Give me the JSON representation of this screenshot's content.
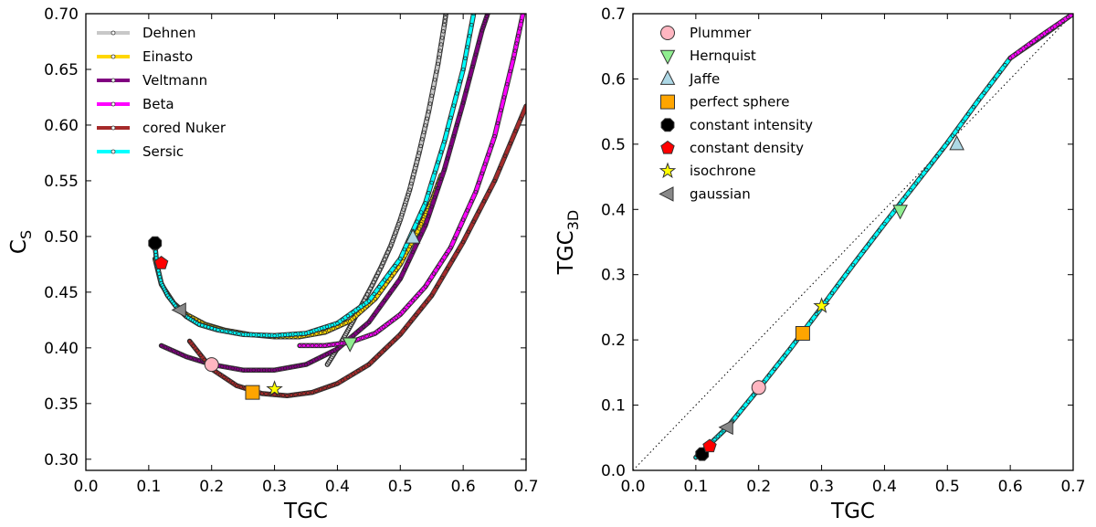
{
  "chart_data": [
    {
      "type": "line",
      "xlabel": "TGC",
      "ylabel": "C",
      "ylabel_sub": "S",
      "xlim": [
        0.0,
        0.7
      ],
      "ylim": [
        0.29,
        0.7
      ],
      "xticks": [
        "0.0",
        "0.1",
        "0.2",
        "0.3",
        "0.4",
        "0.5",
        "0.6",
        "0.7"
      ],
      "yticks": [
        "0.30",
        "0.35",
        "0.40",
        "0.45",
        "0.50",
        "0.55",
        "0.60",
        "0.65",
        "0.70"
      ],
      "legend_position": "top-left",
      "series": [
        {
          "name": "Dehnen",
          "color": "#c8c8c8",
          "x": [
            0.384,
            0.395,
            0.405,
            0.415,
            0.425,
            0.44,
            0.455,
            0.47,
            0.485,
            0.5,
            0.515,
            0.53,
            0.545,
            0.56,
            0.57,
            0.575
          ],
          "y": [
            0.385,
            0.395,
            0.404,
            0.414,
            0.424,
            0.44,
            0.456,
            0.473,
            0.492,
            0.515,
            0.542,
            0.575,
            0.612,
            0.655,
            0.69,
            0.71
          ]
        },
        {
          "name": "Einasto",
          "color": "#ffd700",
          "x": [
            0.11,
            0.12,
            0.14,
            0.16,
            0.19,
            0.22,
            0.26,
            0.3,
            0.34,
            0.38,
            0.42,
            0.46,
            0.5,
            0.53,
            0.55,
            0.565
          ],
          "y": [
            0.48,
            0.457,
            0.44,
            0.43,
            0.421,
            0.416,
            0.412,
            0.41,
            0.41,
            0.414,
            0.424,
            0.444,
            0.475,
            0.507,
            0.532,
            0.555
          ]
        },
        {
          "name": "Veltmann",
          "color": "#800080",
          "x": [
            0.12,
            0.16,
            0.2,
            0.25,
            0.3,
            0.35,
            0.4,
            0.45,
            0.5,
            0.54,
            0.57,
            0.6,
            0.63,
            0.645
          ],
          "y": [
            0.402,
            0.392,
            0.385,
            0.38,
            0.38,
            0.385,
            0.399,
            0.423,
            0.462,
            0.51,
            0.56,
            0.62,
            0.685,
            0.71
          ]
        },
        {
          "name": "Beta",
          "color": "#ff00ff",
          "x": [
            0.34,
            0.38,
            0.42,
            0.46,
            0.5,
            0.54,
            0.58,
            0.62,
            0.65,
            0.68,
            0.695
          ],
          "y": [
            0.402,
            0.402,
            0.405,
            0.413,
            0.43,
            0.455,
            0.49,
            0.54,
            0.59,
            0.66,
            0.7
          ]
        },
        {
          "name": "cored Nuker",
          "color": "#a52a2a",
          "x": [
            0.165,
            0.2,
            0.24,
            0.28,
            0.32,
            0.36,
            0.4,
            0.45,
            0.5,
            0.55,
            0.6,
            0.65,
            0.7
          ],
          "y": [
            0.406,
            0.381,
            0.366,
            0.359,
            0.357,
            0.36,
            0.368,
            0.385,
            0.412,
            0.447,
            0.495,
            0.55,
            0.617
          ]
        },
        {
          "name": "Sersic",
          "color": "#00ffff",
          "x": [
            0.11,
            0.113,
            0.12,
            0.13,
            0.145,
            0.16,
            0.18,
            0.21,
            0.25,
            0.3,
            0.35,
            0.4,
            0.45,
            0.5,
            0.54,
            0.57,
            0.6,
            0.62
          ],
          "y": [
            0.492,
            0.475,
            0.458,
            0.447,
            0.436,
            0.428,
            0.421,
            0.416,
            0.412,
            0.411,
            0.413,
            0.422,
            0.442,
            0.48,
            0.53,
            0.585,
            0.65,
            0.71
          ]
        }
      ],
      "markers": [
        {
          "name": "constant intensity",
          "shape": "octagon",
          "color": "#000000",
          "x": 0.11,
          "y": 0.494
        },
        {
          "name": "constant density",
          "shape": "pentagon",
          "color": "#ff0000",
          "x": 0.12,
          "y": 0.476
        },
        {
          "name": "gaussian",
          "shape": "triangle-left",
          "color": "#888888",
          "x": 0.15,
          "y": 0.434
        },
        {
          "name": "Plummer",
          "shape": "circle",
          "color": "#ffb6c1",
          "x": 0.2,
          "y": 0.385
        },
        {
          "name": "perfect sphere",
          "shape": "square",
          "color": "#ffa500",
          "x": 0.265,
          "y": 0.36
        },
        {
          "name": "isochrone",
          "shape": "star",
          "color": "#ffff00",
          "x": 0.3,
          "y": 0.363
        },
        {
          "name": "Hernquist",
          "shape": "triangle-down",
          "color": "#90ee90",
          "x": 0.42,
          "y": 0.404
        },
        {
          "name": "Jaffe",
          "shape": "triangle-up",
          "color": "#add8e6",
          "x": 0.52,
          "y": 0.499
        }
      ]
    },
    {
      "type": "line",
      "xlabel": "TGC",
      "ylabel": "TGC",
      "ylabel_sub": "3D",
      "xlim": [
        0.0,
        0.7
      ],
      "ylim": [
        0.0,
        0.7
      ],
      "xticks": [
        "0.0",
        "0.1",
        "0.2",
        "0.3",
        "0.4",
        "0.5",
        "0.6",
        "0.7"
      ],
      "yticks": [
        "0.0",
        "0.1",
        "0.2",
        "0.3",
        "0.4",
        "0.5",
        "0.6",
        "0.7"
      ],
      "legend_position": "top-left",
      "reference_line": {
        "style": "dotted",
        "x": [
          0.0,
          0.7
        ],
        "y": [
          0.0,
          0.7
        ]
      },
      "series": [
        {
          "name": "Sersic",
          "color": "#00ffff",
          "x": [
            0.1,
            0.12,
            0.15,
            0.2,
            0.25,
            0.3,
            0.35,
            0.4,
            0.45,
            0.5,
            0.55,
            0.6,
            0.65,
            0.7
          ],
          "y": [
            0.02,
            0.038,
            0.066,
            0.125,
            0.186,
            0.25,
            0.315,
            0.378,
            0.44,
            0.502,
            0.568,
            0.632,
            0.665,
            0.7
          ]
        },
        {
          "name": "Beta",
          "color": "#ff00ff",
          "x": [
            0.6,
            0.65,
            0.7
          ],
          "y": [
            0.632,
            0.667,
            0.7
          ]
        }
      ],
      "markers": [
        {
          "name": "Plummer",
          "shape": "circle",
          "color": "#ffb6c1",
          "x": 0.2,
          "y": 0.127
        },
        {
          "name": "Hernquist",
          "shape": "triangle-down",
          "color": "#90ee90",
          "x": 0.425,
          "y": 0.398
        },
        {
          "name": "Jaffe",
          "shape": "triangle-up",
          "color": "#add8e6",
          "x": 0.515,
          "y": 0.5
        },
        {
          "name": "perfect sphere",
          "shape": "square",
          "color": "#ffa500",
          "x": 0.27,
          "y": 0.21
        },
        {
          "name": "constant intensity",
          "shape": "octagon",
          "color": "#000000",
          "x": 0.11,
          "y": 0.025
        },
        {
          "name": "constant density",
          "shape": "pentagon",
          "color": "#ff0000",
          "x": 0.122,
          "y": 0.037
        },
        {
          "name": "isochrone",
          "shape": "star",
          "color": "#ffff00",
          "x": 0.3,
          "y": 0.252
        },
        {
          "name": "gaussian",
          "shape": "triangle-left",
          "color": "#888888",
          "x": 0.15,
          "y": 0.066
        }
      ]
    }
  ]
}
